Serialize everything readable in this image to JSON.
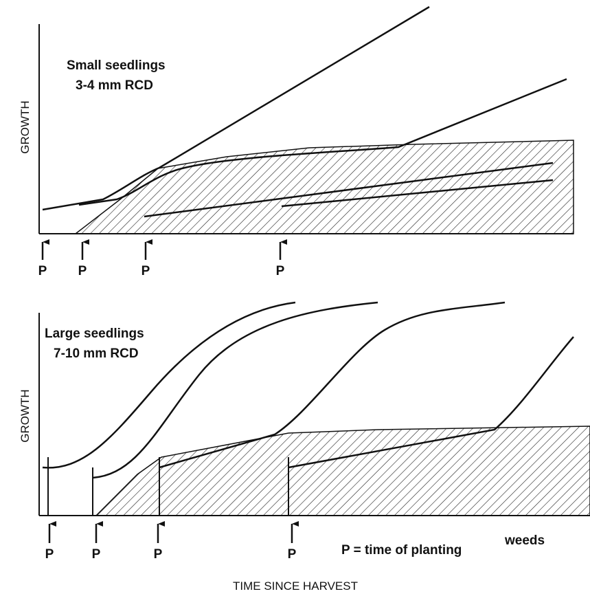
{
  "panels": [
    {
      "title_line1": "Small seedlings",
      "title_line2": "3-4 mm RCD",
      "y_label": "GROWTH",
      "planting_labels": [
        "P",
        "P",
        "P",
        "P"
      ]
    },
    {
      "title_line1": "Large seedlings",
      "title_line2": "7-10 mm RCD",
      "y_label": "GROWTH",
      "planting_labels": [
        "P",
        "P",
        "P",
        "P"
      ],
      "region_label": "weeds"
    }
  ],
  "legend": "P = time of planting",
  "x_label": "TIME SINCE HARVEST"
}
